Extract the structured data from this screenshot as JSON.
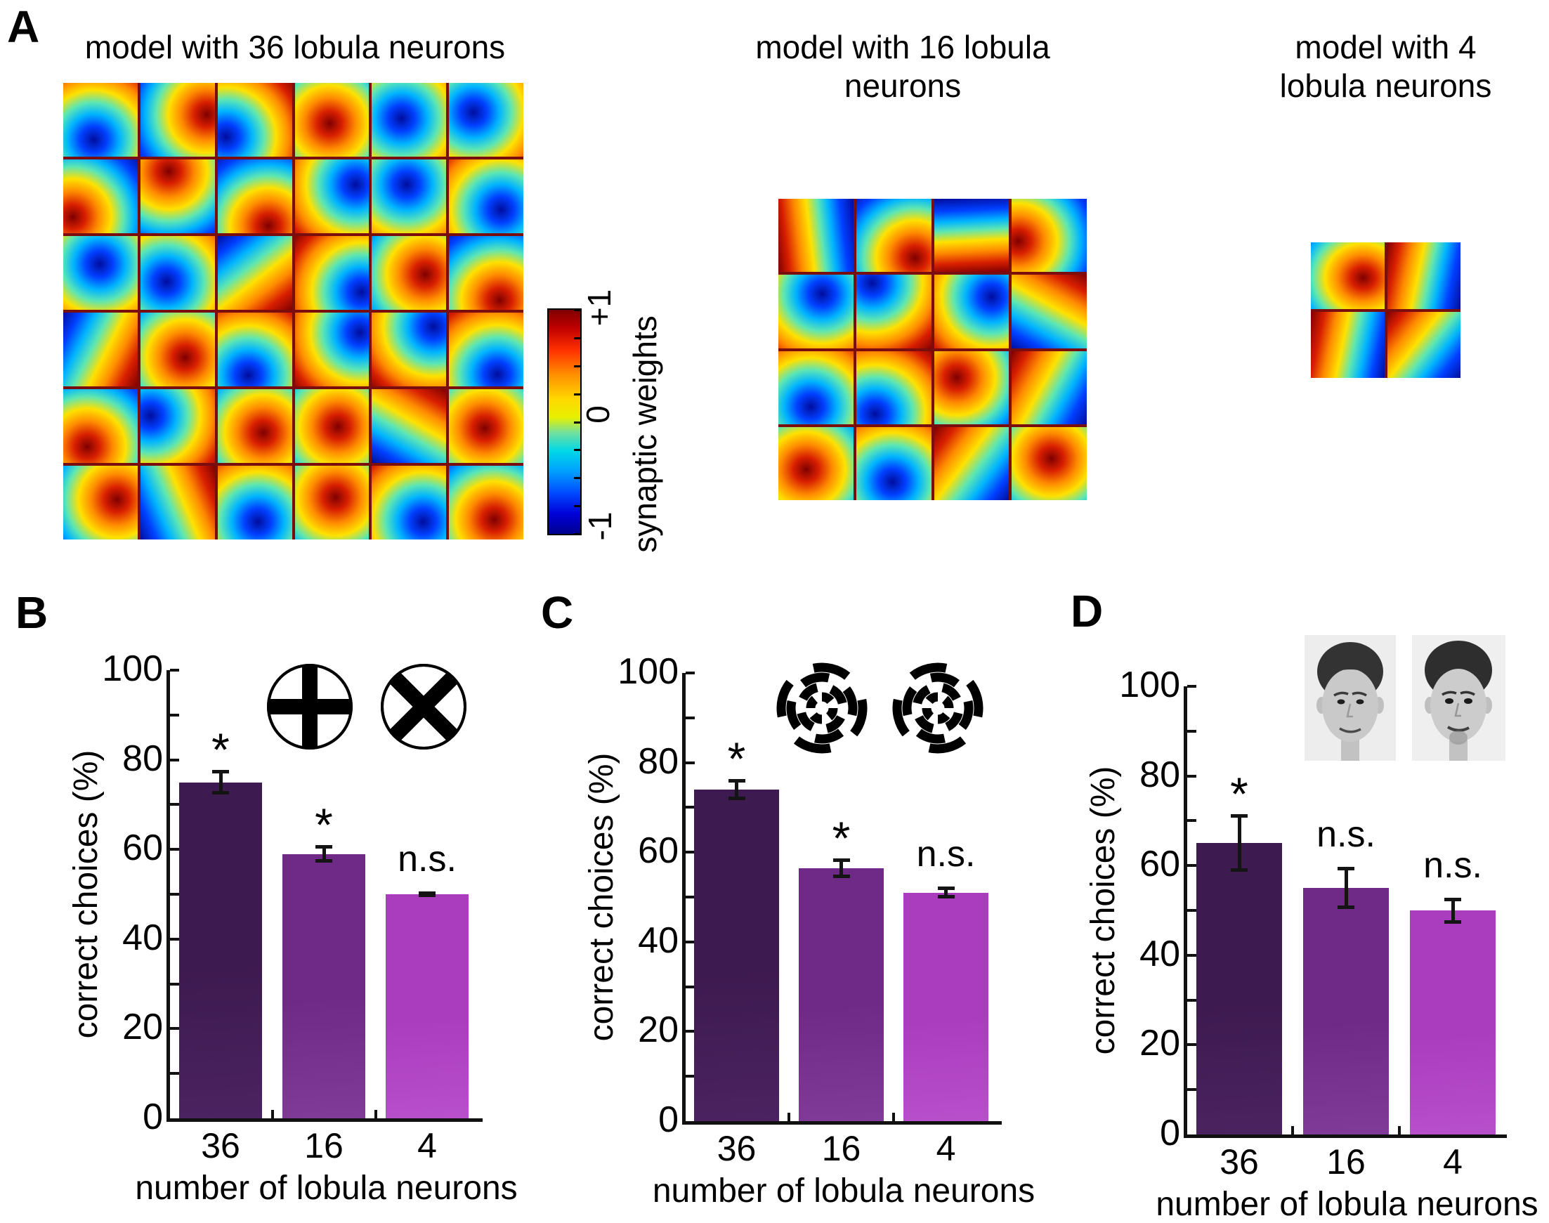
{
  "panels": {
    "a": {
      "letter": "A",
      "models": [
        {
          "title": "model with 36 lobula neurons",
          "lobula_neurons": 36,
          "grid_rows": 6,
          "grid_cols": 6
        },
        {
          "title": "model with 16 lobula neurons",
          "lobula_neurons": 16,
          "grid_rows": 4,
          "grid_cols": 4
        },
        {
          "title": "model with 4 lobula neurons",
          "lobula_neurons": 4,
          "grid_rows": 2,
          "grid_cols": 2
        }
      ],
      "colorbar": {
        "max_label": "+1",
        "zero_label": "0",
        "min_label": "-1",
        "axis_label": "synaptic weights"
      }
    },
    "b": {
      "letter": "B"
    },
    "c": {
      "letter": "C"
    },
    "d": {
      "letter": "D"
    }
  },
  "chart_data": [
    {
      "panel": "B",
      "type": "bar",
      "categories": [
        "36",
        "16",
        "4"
      ],
      "values": [
        75,
        59,
        50
      ],
      "errors": [
        2.7,
        2.0,
        0.6
      ],
      "significance": [
        "*",
        "*",
        "n.s."
      ],
      "stimuli": [
        "plus-in-circle",
        "x-in-circle"
      ],
      "xlabel": "number of lobula neurons",
      "ylabel": "correct choices (%)",
      "ylim": [
        0,
        100
      ],
      "yticks": [
        0,
        20,
        40,
        60,
        80,
        100
      ],
      "minor_tick_step": 10,
      "legend": "none",
      "grid": "off",
      "bar_colors": [
        "#3d1a50",
        "#6f2a87",
        "#aa3cbe"
      ],
      "bar_colors_light": [
        "#4b2360",
        "#803a98",
        "#b84fcb"
      ]
    },
    {
      "panel": "C",
      "type": "bar",
      "categories": [
        "36",
        "16",
        "4"
      ],
      "values": [
        74,
        56.5,
        51
      ],
      "errors": [
        2.3,
        2.2,
        1.3
      ],
      "significance": [
        "*",
        "*",
        "n.s."
      ],
      "stimuli": [
        "spiral-pinwheel-clockwise",
        "spiral-pinwheel-counterclockwise"
      ],
      "xlabel": "number of lobula neurons",
      "ylabel": "correct choices (%)",
      "ylim": [
        0,
        100
      ],
      "yticks": [
        0,
        20,
        40,
        60,
        80,
        100
      ],
      "minor_tick_step": 10,
      "legend": "none",
      "grid": "off",
      "bar_colors": [
        "#3d1a50",
        "#6f2a87",
        "#aa3cbe"
      ],
      "bar_colors_light": [
        "#4b2360",
        "#803a98",
        "#b84fcb"
      ]
    },
    {
      "panel": "D",
      "type": "bar",
      "categories": [
        "36",
        "16",
        "4"
      ],
      "values": [
        65,
        55,
        50
      ],
      "errors": [
        6.4,
        4.7,
        2.9
      ],
      "significance": [
        "*",
        "n.s.",
        "n.s."
      ],
      "stimuli": [
        "male-face-photo-1",
        "male-face-photo-2"
      ],
      "xlabel": "number of lobula neurons",
      "ylabel": "correct choices (%)",
      "ylim": [
        0,
        100
      ],
      "yticks": [
        0,
        20,
        40,
        60,
        80,
        100
      ],
      "minor_tick_step": 10,
      "legend": "none",
      "grid": "off",
      "bar_colors": [
        "#3d1a50",
        "#6f2a87",
        "#aa3cbe"
      ],
      "bar_colors_light": [
        "#4b2360",
        "#803a98",
        "#b84fcb"
      ]
    }
  ],
  "colors": {
    "grid_line": "#7a0d0d",
    "axis": "#111111",
    "colorbar_max": "#7f0000",
    "colorbar_min": "#00008f"
  }
}
